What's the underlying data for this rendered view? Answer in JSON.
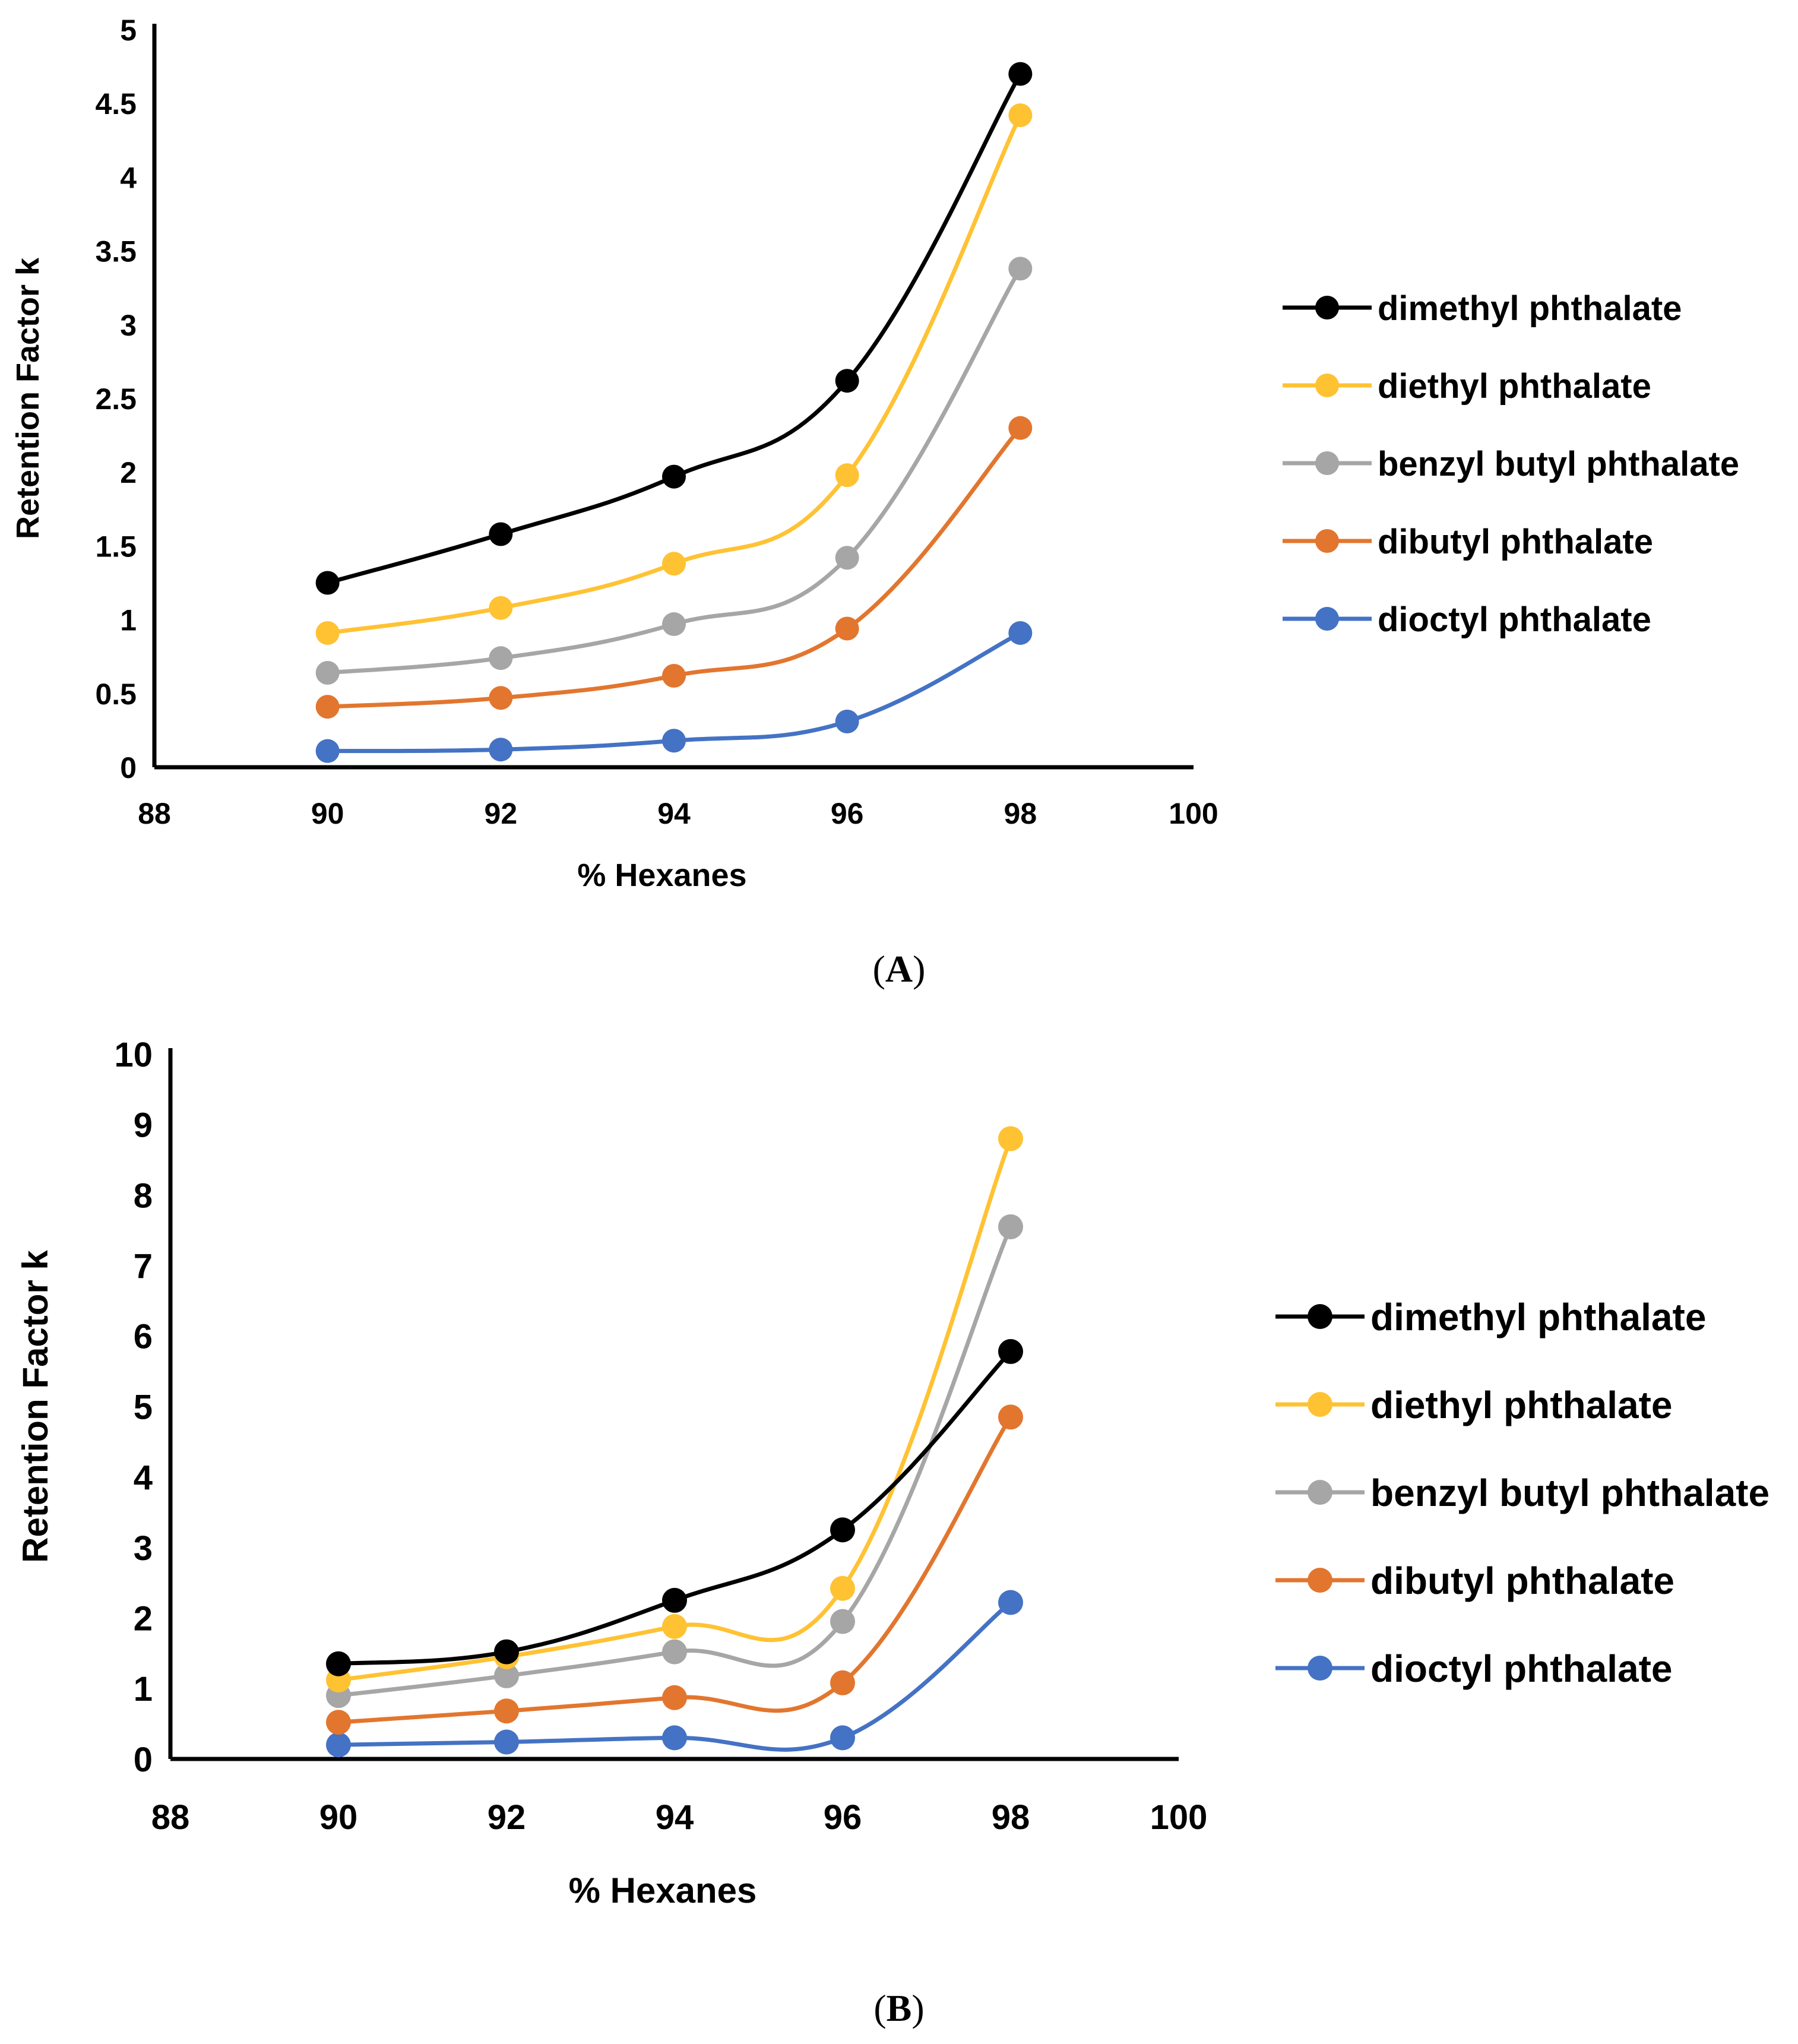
{
  "chart_data": [
    {
      "type": "line",
      "panel_label": "A",
      "title": "",
      "xlabel": "% Hexanes",
      "ylabel": "Retention Factor k",
      "xlim": [
        88,
        100
      ],
      "ylim": [
        0,
        5
      ],
      "xticks": [
        88,
        90,
        92,
        94,
        96,
        98,
        100
      ],
      "yticks": [
        0,
        0.5,
        1,
        1.5,
        2,
        2.5,
        3,
        3.5,
        4,
        4.5,
        5
      ],
      "yticklabels": [
        "0",
        "0.5",
        "1",
        "1.5",
        "2",
        "2.5",
        "3",
        "3.5",
        "4",
        "4.5",
        "5"
      ],
      "legend_position": "right",
      "x": [
        90,
        92,
        94,
        96,
        98
      ],
      "series": [
        {
          "name": "dimethyl phthalate",
          "color": "#000000",
          "values": [
            1.25,
            1.58,
            1.97,
            2.62,
            4.7
          ]
        },
        {
          "name": "diethyl phthalate",
          "color": "#FFC233",
          "values": [
            0.91,
            1.08,
            1.38,
            1.98,
            4.42
          ]
        },
        {
          "name": "benzyl butyl phthalate",
          "color": "#A6A6A6",
          "values": [
            0.64,
            0.74,
            0.97,
            1.42,
            3.38
          ]
        },
        {
          "name": "dibutyl phthalate",
          "color": "#E2762F",
          "values": [
            0.41,
            0.47,
            0.62,
            0.94,
            2.3
          ]
        },
        {
          "name": "dioctyl phthalate",
          "color": "#4472C4",
          "values": [
            0.11,
            0.12,
            0.18,
            0.31,
            0.91
          ]
        }
      ]
    },
    {
      "type": "line",
      "panel_label": "B",
      "title": "",
      "xlabel": "% Hexanes",
      "ylabel": "Retention Factor k",
      "xlim": [
        88,
        100
      ],
      "ylim": [
        0,
        10
      ],
      "xticks": [
        88,
        90,
        92,
        94,
        96,
        98,
        100
      ],
      "yticks": [
        0,
        1,
        2,
        3,
        4,
        5,
        6,
        7,
        8,
        9,
        10
      ],
      "yticklabels": [
        "0",
        "1",
        "2",
        "3",
        "4",
        "5",
        "6",
        "7",
        "8",
        "9",
        "10"
      ],
      "legend_position": "right",
      "x": [
        90,
        92,
        94,
        96,
        98
      ],
      "series": [
        {
          "name": "dimethyl phthalate",
          "color": "#000000",
          "values": [
            1.35,
            1.52,
            2.25,
            3.25,
            5.78
          ]
        },
        {
          "name": "diethyl phthalate",
          "color": "#FFC233",
          "values": [
            1.12,
            1.45,
            1.88,
            2.42,
            8.8
          ]
        },
        {
          "name": "benzyl butyl phthalate",
          "color": "#A6A6A6",
          "values": [
            0.9,
            1.18,
            1.52,
            1.95,
            7.55
          ]
        },
        {
          "name": "dibutyl phthalate",
          "color": "#E2762F",
          "values": [
            0.52,
            0.68,
            0.87,
            1.08,
            4.85
          ]
        },
        {
          "name": "dioctyl phthalate",
          "color": "#4472C4",
          "values": [
            0.2,
            0.24,
            0.3,
            0.3,
            2.22
          ]
        }
      ]
    }
  ]
}
